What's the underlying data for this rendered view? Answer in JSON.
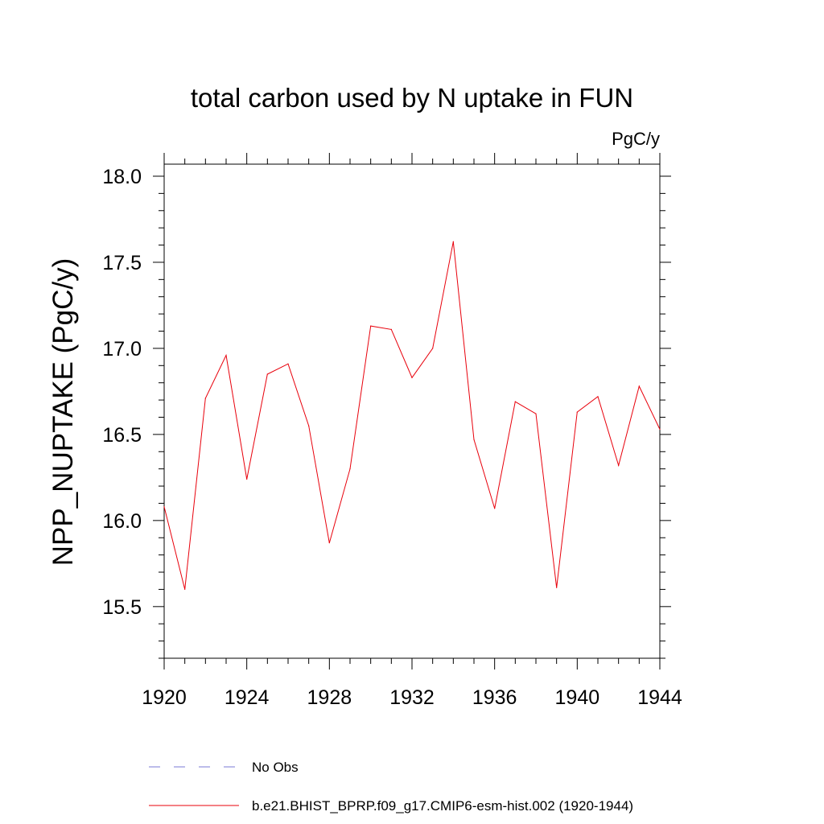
{
  "chart_data": {
    "type": "line",
    "title": "total carbon used by N uptake in FUN",
    "units": "PgC/y",
    "ylabel": "NPP_NUPTAKE  (PgC/y)",
    "xlabel": "",
    "xlim": [
      1920,
      1944
    ],
    "ylim": [
      15.2,
      18.07
    ],
    "x_ticks": [
      "1920",
      "1924",
      "1928",
      "1932",
      "1936",
      "1940",
      "1944"
    ],
    "y_ticks": [
      "15.5",
      "16.0",
      "16.5",
      "17.0",
      "17.5",
      "18.0"
    ],
    "grid": false,
    "x": [
      1920,
      1921,
      1922,
      1923,
      1924,
      1925,
      1926,
      1927,
      1928,
      1929,
      1930,
      1931,
      1932,
      1933,
      1934,
      1935,
      1936,
      1937,
      1938,
      1939,
      1940,
      1941,
      1942,
      1943,
      1944
    ],
    "series": [
      {
        "name": "b.e21.BHIST_BPRP.f09_g17.CMIP6-esm-hist.002 (1920-1944)",
        "color": "#e8000b",
        "values": [
          16.08,
          15.6,
          16.71,
          16.96,
          16.24,
          16.85,
          16.91,
          16.55,
          15.87,
          16.3,
          17.13,
          17.11,
          16.83,
          17.0,
          17.62,
          16.47,
          16.07,
          16.69,
          16.62,
          15.61,
          16.63,
          16.72,
          16.32,
          16.78,
          16.53
        ]
      }
    ],
    "legend": {
      "placement": "bottom",
      "entries": [
        {
          "label": "No Obs",
          "style": "dashed",
          "color": "#7a7ad6"
        },
        {
          "label": "b.e21.BHIST_BPRP.f09_g17.CMIP6-esm-hist.002 (1920-1944)",
          "style": "solid",
          "color": "#e8000b"
        }
      ]
    }
  }
}
